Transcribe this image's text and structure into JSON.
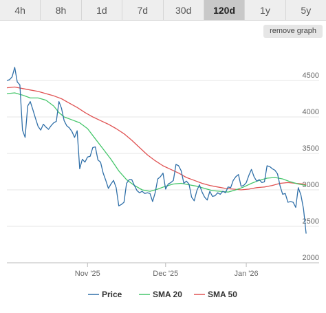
{
  "tabs": [
    {
      "label": "4h",
      "active": false
    },
    {
      "label": "8h",
      "active": false
    },
    {
      "label": "1d",
      "active": false
    },
    {
      "label": "7d",
      "active": false
    },
    {
      "label": "30d",
      "active": false
    },
    {
      "label": "120d",
      "active": true
    },
    {
      "label": "1y",
      "active": false
    },
    {
      "label": "5y",
      "active": false
    }
  ],
  "remove_graph_label": "remove graph",
  "chart_data": {
    "type": "line",
    "title": "",
    "xlabel": "",
    "ylabel": "",
    "ylim": [
      2000,
      5000
    ],
    "y_ticks": [
      2000,
      2500,
      3000,
      3500,
      4000,
      4500
    ],
    "x_ticks": [
      {
        "label": "Nov '25",
        "day": 31
      },
      {
        "label": "Dec '25",
        "day": 61
      },
      {
        "label": "Jan '26",
        "day": 92
      }
    ],
    "x_range_days": [
      0,
      120
    ],
    "grid": true,
    "legend_position": "bottom",
    "series": [
      {
        "name": "Price",
        "color": "#2f6fa8",
        "points": [
          [
            0,
            4500
          ],
          [
            1,
            4510
          ],
          [
            2,
            4550
          ],
          [
            3,
            4680
          ],
          [
            4,
            4480
          ],
          [
            5,
            4440
          ],
          [
            6,
            3820
          ],
          [
            7,
            3720
          ],
          [
            8,
            4150
          ],
          [
            9,
            4210
          ],
          [
            10,
            4100
          ],
          [
            11,
            3980
          ],
          [
            12,
            3870
          ],
          [
            13,
            3820
          ],
          [
            14,
            3900
          ],
          [
            15,
            3860
          ],
          [
            16,
            3830
          ],
          [
            17,
            3880
          ],
          [
            18,
            3920
          ],
          [
            19,
            3940
          ],
          [
            20,
            4210
          ],
          [
            21,
            4120
          ],
          [
            22,
            3950
          ],
          [
            23,
            3880
          ],
          [
            24,
            3850
          ],
          [
            25,
            3800
          ],
          [
            26,
            3720
          ],
          [
            27,
            3810
          ],
          [
            28,
            3290
          ],
          [
            29,
            3420
          ],
          [
            30,
            3380
          ],
          [
            31,
            3450
          ],
          [
            32,
            3460
          ],
          [
            33,
            3580
          ],
          [
            34,
            3590
          ],
          [
            35,
            3410
          ],
          [
            36,
            3380
          ],
          [
            37,
            3230
          ],
          [
            38,
            3130
          ],
          [
            39,
            3020
          ],
          [
            40,
            3080
          ],
          [
            41,
            3130
          ],
          [
            42,
            3030
          ],
          [
            43,
            2780
          ],
          [
            44,
            2800
          ],
          [
            45,
            2830
          ],
          [
            46,
            3090
          ],
          [
            47,
            3140
          ],
          [
            48,
            3140
          ],
          [
            49,
            3060
          ],
          [
            50,
            2990
          ],
          [
            51,
            2960
          ],
          [
            52,
            2980
          ],
          [
            53,
            2950
          ],
          [
            54,
            2960
          ],
          [
            55,
            2950
          ],
          [
            56,
            2840
          ],
          [
            57,
            2960
          ],
          [
            58,
            3150
          ],
          [
            59,
            3180
          ],
          [
            60,
            3230
          ],
          [
            61,
            3010
          ],
          [
            62,
            3080
          ],
          [
            63,
            3100
          ],
          [
            64,
            3130
          ],
          [
            65,
            3350
          ],
          [
            66,
            3330
          ],
          [
            67,
            3260
          ],
          [
            68,
            3090
          ],
          [
            69,
            3120
          ],
          [
            70,
            3080
          ],
          [
            71,
            2900
          ],
          [
            72,
            2850
          ],
          [
            73,
            2990
          ],
          [
            74,
            3070
          ],
          [
            75,
            2970
          ],
          [
            76,
            2900
          ],
          [
            77,
            2860
          ],
          [
            78,
            2980
          ],
          [
            79,
            2910
          ],
          [
            80,
            2920
          ],
          [
            81,
            2960
          ],
          [
            82,
            2940
          ],
          [
            83,
            2980
          ],
          [
            84,
            2960
          ],
          [
            85,
            3040
          ],
          [
            86,
            3030
          ],
          [
            87,
            3130
          ],
          [
            88,
            3180
          ],
          [
            89,
            3210
          ],
          [
            90,
            3050
          ],
          [
            91,
            3060
          ],
          [
            92,
            3100
          ],
          [
            93,
            3200
          ],
          [
            94,
            3280
          ],
          [
            95,
            3180
          ],
          [
            96,
            3120
          ],
          [
            97,
            3140
          ],
          [
            98,
            3100
          ],
          [
            99,
            3110
          ],
          [
            100,
            3330
          ],
          [
            101,
            3320
          ],
          [
            102,
            3290
          ],
          [
            103,
            3270
          ],
          [
            104,
            3220
          ],
          [
            105,
            3050
          ],
          [
            106,
            2940
          ],
          [
            107,
            2950
          ],
          [
            108,
            2830
          ],
          [
            109,
            2840
          ],
          [
            110,
            2830
          ],
          [
            111,
            2760
          ],
          [
            112,
            3030
          ],
          [
            113,
            2930
          ],
          [
            114,
            2740
          ],
          [
            115,
            2400
          ]
        ]
      },
      {
        "name": "SMA 20",
        "color": "#44c66a",
        "points": [
          [
            0,
            4320
          ],
          [
            3,
            4330
          ],
          [
            6,
            4300
          ],
          [
            9,
            4260
          ],
          [
            12,
            4260
          ],
          [
            15,
            4230
          ],
          [
            18,
            4150
          ],
          [
            20,
            4060
          ],
          [
            22,
            4000
          ],
          [
            25,
            3960
          ],
          [
            28,
            3920
          ],
          [
            31,
            3840
          ],
          [
            34,
            3700
          ],
          [
            37,
            3560
          ],
          [
            40,
            3420
          ],
          [
            43,
            3260
          ],
          [
            46,
            3140
          ],
          [
            49,
            3060
          ],
          [
            52,
            3000
          ],
          [
            55,
            2980
          ],
          [
            58,
            3010
          ],
          [
            61,
            3050
          ],
          [
            64,
            3080
          ],
          [
            67,
            3090
          ],
          [
            70,
            3070
          ],
          [
            73,
            3050
          ],
          [
            76,
            3020
          ],
          [
            79,
            2990
          ],
          [
            82,
            2980
          ],
          [
            85,
            2970
          ],
          [
            88,
            3000
          ],
          [
            91,
            3040
          ],
          [
            94,
            3090
          ],
          [
            97,
            3130
          ],
          [
            100,
            3160
          ],
          [
            103,
            3170
          ],
          [
            106,
            3150
          ],
          [
            109,
            3110
          ],
          [
            112,
            3080
          ],
          [
            115,
            3060
          ]
        ]
      },
      {
        "name": "SMA 50",
        "color": "#e05252",
        "points": [
          [
            0,
            4400
          ],
          [
            3,
            4410
          ],
          [
            6,
            4390
          ],
          [
            9,
            4370
          ],
          [
            12,
            4350
          ],
          [
            15,
            4320
          ],
          [
            18,
            4290
          ],
          [
            21,
            4250
          ],
          [
            24,
            4190
          ],
          [
            27,
            4130
          ],
          [
            30,
            4060
          ],
          [
            33,
            4000
          ],
          [
            36,
            3950
          ],
          [
            39,
            3900
          ],
          [
            42,
            3840
          ],
          [
            45,
            3770
          ],
          [
            48,
            3680
          ],
          [
            51,
            3580
          ],
          [
            54,
            3480
          ],
          [
            57,
            3400
          ],
          [
            60,
            3330
          ],
          [
            63,
            3280
          ],
          [
            66,
            3230
          ],
          [
            69,
            3170
          ],
          [
            72,
            3130
          ],
          [
            75,
            3090
          ],
          [
            78,
            3060
          ],
          [
            81,
            3040
          ],
          [
            84,
            3020
          ],
          [
            87,
            3010
          ],
          [
            90,
            3000
          ],
          [
            93,
            3010
          ],
          [
            96,
            3030
          ],
          [
            99,
            3040
          ],
          [
            102,
            3060
          ],
          [
            105,
            3090
          ],
          [
            108,
            3100
          ],
          [
            111,
            3090
          ],
          [
            114,
            3080
          ],
          [
            115,
            3070
          ]
        ]
      }
    ]
  }
}
